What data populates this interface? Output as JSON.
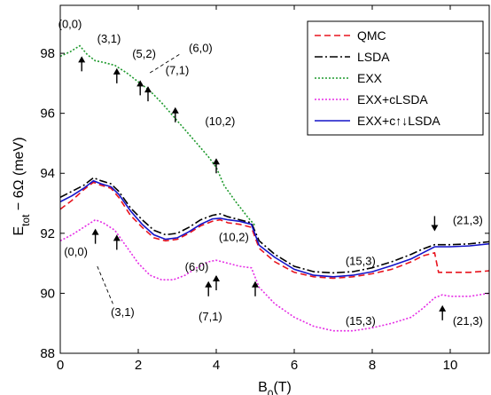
{
  "chart_data": {
    "type": "line",
    "title": "",
    "xlabel": "B",
    "xlabel_sub": "0",
    "xlabel_unit": "(T)",
    "ylabel": "E",
    "ylabel_sub": "tot",
    "ylabel_rest": " − 6Ω (meV)",
    "xlim": [
      0,
      11
    ],
    "ylim": [
      88,
      99.6
    ],
    "xticks": [
      0,
      2,
      4,
      6,
      8,
      10
    ],
    "yticks": [
      88,
      90,
      92,
      94,
      96,
      98
    ],
    "legend_position": "top-right",
    "series": [
      {
        "name": "QMC",
        "color": "#e8141e",
        "dash": "7,4",
        "x": [
          0,
          0.3,
          0.6,
          0.85,
          1.05,
          1.3,
          1.5,
          1.8,
          2.1,
          2.4,
          2.7,
          3.0,
          3.3,
          3.6,
          3.9,
          4.1,
          4.3,
          4.6,
          4.9,
          5.1,
          5.5,
          6,
          6.5,
          7,
          7.5,
          8,
          8.5,
          9,
          9.3,
          9.6,
          9.7,
          10,
          10.5,
          11
        ],
        "y": [
          92.8,
          93.1,
          93.45,
          93.7,
          93.6,
          93.5,
          93.2,
          92.6,
          92.2,
          91.85,
          91.75,
          91.8,
          92.0,
          92.25,
          92.4,
          92.45,
          92.35,
          92.3,
          92.2,
          91.5,
          91.05,
          90.7,
          90.55,
          90.5,
          90.55,
          90.65,
          90.8,
          91.05,
          91.25,
          91.35,
          90.7,
          90.7,
          90.7,
          90.75
        ]
      },
      {
        "name": "LSDA",
        "color": "#000000",
        "dash": "9,3,2,3",
        "x": [
          0,
          0.3,
          0.6,
          0.85,
          1.05,
          1.3,
          1.5,
          1.8,
          2.1,
          2.4,
          2.7,
          3.0,
          3.3,
          3.6,
          3.9,
          4.1,
          4.3,
          4.6,
          4.9,
          5.1,
          5.5,
          6,
          6.5,
          7,
          7.5,
          8,
          8.5,
          9,
          9.3,
          9.6,
          10,
          10.5,
          11
        ],
        "y": [
          93.2,
          93.4,
          93.6,
          93.85,
          93.75,
          93.65,
          93.4,
          92.85,
          92.45,
          92.1,
          91.95,
          92.0,
          92.2,
          92.45,
          92.6,
          92.65,
          92.55,
          92.45,
          92.35,
          91.75,
          91.3,
          90.9,
          90.72,
          90.68,
          90.72,
          90.85,
          91.05,
          91.3,
          91.48,
          91.62,
          91.62,
          91.65,
          91.72
        ]
      },
      {
        "name": "EXX",
        "color": "#1f9a2e",
        "dash": "2,2",
        "x": [
          0,
          0.25,
          0.5,
          0.7,
          0.9,
          1.1,
          1.4,
          1.7,
          2.0,
          2.3,
          2.6,
          2.9,
          3.2,
          3.5,
          3.8,
          4.0,
          4.2,
          4.5,
          4.8,
          5.0
        ],
        "y": [
          97.9,
          98.05,
          98.25,
          97.95,
          97.75,
          97.7,
          97.6,
          97.35,
          97.05,
          96.75,
          96.35,
          95.9,
          95.45,
          95.0,
          94.55,
          94.2,
          93.6,
          93.05,
          92.55,
          92.25
        ]
      },
      {
        "name": "EXX+cLSDA",
        "color": "#e52ee5",
        "dash": "2,2",
        "x": [
          0,
          0.3,
          0.6,
          0.9,
          1.1,
          1.4,
          1.7,
          2.0,
          2.3,
          2.6,
          2.9,
          3.2,
          3.5,
          3.8,
          4.0,
          4.3,
          4.6,
          4.9,
          5.1,
          5.5,
          6,
          6.5,
          7,
          7.5,
          8,
          8.5,
          9,
          9.3,
          9.6,
          9.8,
          10,
          10.5,
          11
        ],
        "y": [
          91.75,
          91.95,
          92.2,
          92.45,
          92.35,
          92.1,
          91.55,
          91.0,
          90.6,
          90.45,
          90.45,
          90.6,
          90.85,
          91.05,
          91.1,
          91.0,
          90.9,
          90.85,
          90.2,
          89.65,
          89.2,
          88.9,
          88.75,
          88.75,
          88.85,
          89.0,
          89.2,
          89.5,
          89.85,
          89.95,
          89.9,
          89.9,
          90.0
        ]
      },
      {
        "name": "EXX+c↑↓LSDA",
        "color": "#1414c8",
        "dash": "",
        "x": [
          0,
          0.3,
          0.6,
          0.85,
          1.05,
          1.3,
          1.5,
          1.8,
          2.1,
          2.4,
          2.7,
          3.0,
          3.3,
          3.6,
          3.9,
          4.1,
          4.3,
          4.6,
          4.9,
          5.1,
          5.5,
          6,
          6.5,
          7,
          7.5,
          8,
          8.5,
          9,
          9.3,
          9.6,
          10,
          10.5,
          11
        ],
        "y": [
          93.05,
          93.25,
          93.5,
          93.75,
          93.65,
          93.55,
          93.3,
          92.75,
          92.3,
          91.95,
          91.8,
          91.85,
          92.05,
          92.3,
          92.48,
          92.5,
          92.45,
          92.4,
          92.3,
          91.6,
          91.2,
          90.8,
          90.6,
          90.55,
          90.6,
          90.72,
          90.92,
          91.15,
          91.35,
          91.55,
          91.55,
          91.58,
          91.65
        ]
      }
    ],
    "annotations": [
      {
        "text": "(0,0)",
        "x": 0.25,
        "y": 98.85
      },
      {
        "text": "(3,1)",
        "x": 1.25,
        "y": 98.35
      },
      {
        "text": "(5,2)",
        "x": 2.15,
        "y": 97.85
      },
      {
        "text": "(6,0)",
        "x": 3.6,
        "y": 98.05
      },
      {
        "text": "(7,1)",
        "x": 3.0,
        "y": 97.3
      },
      {
        "text": "(10,2)",
        "x": 4.1,
        "y": 95.6
      },
      {
        "text": "(0,0)",
        "x": 0.4,
        "y": 91.25
      },
      {
        "text": "(3,1)",
        "x": 1.6,
        "y": 89.25
      },
      {
        "text": "(6,0)",
        "x": 3.5,
        "y": 90.75
      },
      {
        "text": "(10,2)",
        "x": 4.45,
        "y": 91.75
      },
      {
        "text": "(7,1)",
        "x": 3.85,
        "y": 89.1
      },
      {
        "text": "(15,3)",
        "x": 7.7,
        "y": 90.95
      },
      {
        "text": "(15,3)",
        "x": 7.7,
        "y": 88.95
      },
      {
        "text": "(21,3)",
        "x": 10.45,
        "y": 92.3
      },
      {
        "text": "(21,3)",
        "x": 10.45,
        "y": 88.95
      }
    ],
    "arrows": [
      {
        "x": 0.55,
        "y": 97.4,
        "dir": "up"
      },
      {
        "x": 1.45,
        "y": 97.0,
        "dir": "up"
      },
      {
        "x": 2.05,
        "y": 96.6,
        "dir": "up"
      },
      {
        "x": 2.25,
        "y": 96.4,
        "dir": "up"
      },
      {
        "x": 2.95,
        "y": 95.7,
        "dir": "up"
      },
      {
        "x": 4.0,
        "y": 94.0,
        "dir": "up"
      },
      {
        "x": 0.9,
        "y": 91.65,
        "dir": "up"
      },
      {
        "x": 1.45,
        "y": 91.45,
        "dir": "up"
      },
      {
        "x": 3.8,
        "y": 89.9,
        "dir": "up"
      },
      {
        "x": 4.0,
        "y": 90.1,
        "dir": "up"
      },
      {
        "x": 5.0,
        "y": 89.9,
        "dir": "up"
      },
      {
        "x": 9.6,
        "y": 92.1,
        "dir": "down"
      },
      {
        "x": 9.8,
        "y": 89.1,
        "dir": "up"
      }
    ],
    "leaders": [
      {
        "x1": 2.3,
        "y1": 97.35,
        "x2": 3.1,
        "y2": 98.0
      },
      {
        "x1": 0.95,
        "y1": 90.9,
        "x2": 1.35,
        "y2": 89.65
      }
    ]
  }
}
